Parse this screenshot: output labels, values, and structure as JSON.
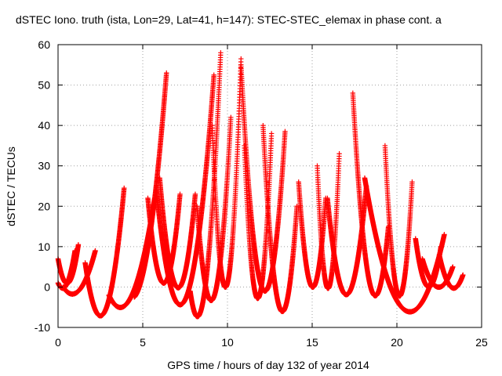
{
  "chart_data": {
    "type": "scatter",
    "title": "dSTEC Iono. truth (ista, Lon=29, Lat=41, h=147): STEC-STEC_elemax in phase cont. a",
    "xlabel": "GPS time / hours of day 132 of year 2014",
    "ylabel": "dSTEC  / TECUs",
    "xlim": [
      0,
      25
    ],
    "ylim": [
      -10,
      60
    ],
    "x_ticks": [
      0,
      5,
      10,
      15,
      20,
      25
    ],
    "y_ticks": [
      -10,
      0,
      10,
      20,
      30,
      40,
      50,
      60
    ],
    "x_tick_labels": [
      "0",
      "5",
      "10",
      "15",
      "20",
      "25"
    ],
    "y_tick_labels": [
      "-10",
      "0",
      "10",
      "20",
      "30",
      "40",
      "50",
      "60"
    ],
    "grid": true,
    "marker": "+",
    "color": "#ff0000",
    "arcs": [
      {
        "x": [
          0.0,
          0.6,
          1.2
        ],
        "y": [
          7,
          1,
          10.5
        ]
      },
      {
        "x": [
          0.0,
          0.4,
          1.0
        ],
        "y": [
          1,
          0,
          9
        ]
      },
      {
        "x": [
          0.3,
          1.2,
          2.2
        ],
        "y": [
          0,
          -1,
          9
        ]
      },
      {
        "x": [
          1.6,
          2.7,
          3.9
        ],
        "y": [
          6,
          -6.5,
          24.5
        ]
      },
      {
        "x": [
          3.0,
          4.3,
          5.7
        ],
        "y": [
          -2,
          -2.5,
          22
        ]
      },
      {
        "x": [
          4.5,
          5.1,
          6.4
        ],
        "y": [
          -2.5,
          5,
          53
        ]
      },
      {
        "x": [
          5.3,
          6.2,
          7.2
        ],
        "y": [
          22,
          1,
          23
        ]
      },
      {
        "x": [
          6.0,
          7.0,
          8.1
        ],
        "y": [
          27,
          0,
          23
        ]
      },
      {
        "x": [
          5.8,
          6.8,
          9.2
        ],
        "y": [
          24,
          -2,
          52.5
        ]
      },
      {
        "x": [
          7.8,
          8.6,
          9.6
        ],
        "y": [
          -1,
          -2.5,
          58
        ]
      },
      {
        "x": [
          8.2,
          9.3,
          10.2
        ],
        "y": [
          20,
          -1,
          42
        ]
      },
      {
        "x": [
          9.1,
          9.9,
          10.8
        ],
        "y": [
          40,
          0,
          56.5
        ]
      },
      {
        "x": [
          10.8,
          12.2,
          13.4
        ],
        "y": [
          55,
          -1,
          38.5
        ]
      },
      {
        "x": [
          11.0,
          11.9,
          12.6
        ],
        "y": [
          35,
          -2,
          38
        ]
      },
      {
        "x": [
          12.1,
          13.0,
          14.1
        ],
        "y": [
          40,
          -4,
          20
        ]
      },
      {
        "x": [
          14.2,
          15.0,
          15.8
        ],
        "y": [
          26,
          0,
          22
        ]
      },
      {
        "x": [
          15.3,
          16.0,
          16.6
        ],
        "y": [
          30,
          0,
          33
        ]
      },
      {
        "x": [
          15.9,
          16.8,
          18.2
        ],
        "y": [
          22,
          -1,
          25
        ]
      },
      {
        "x": [
          17.4,
          18.8,
          19.5
        ],
        "y": [
          48,
          -2,
          15
        ]
      },
      {
        "x": [
          19.3,
          20.0,
          20.9
        ],
        "y": [
          35,
          -1,
          26
        ]
      },
      {
        "x": [
          18.1,
          20.6,
          22.8
        ],
        "y": [
          27,
          -6,
          13
        ]
      },
      {
        "x": [
          21.1,
          21.9,
          22.6
        ],
        "y": [
          12,
          0,
          10
        ]
      },
      {
        "x": [
          21.5,
          22.4,
          23.3
        ],
        "y": [
          7,
          0,
          5
        ]
      },
      {
        "x": [
          22.5,
          23.2,
          23.9
        ],
        "y": [
          8,
          0,
          3
        ]
      }
    ]
  }
}
